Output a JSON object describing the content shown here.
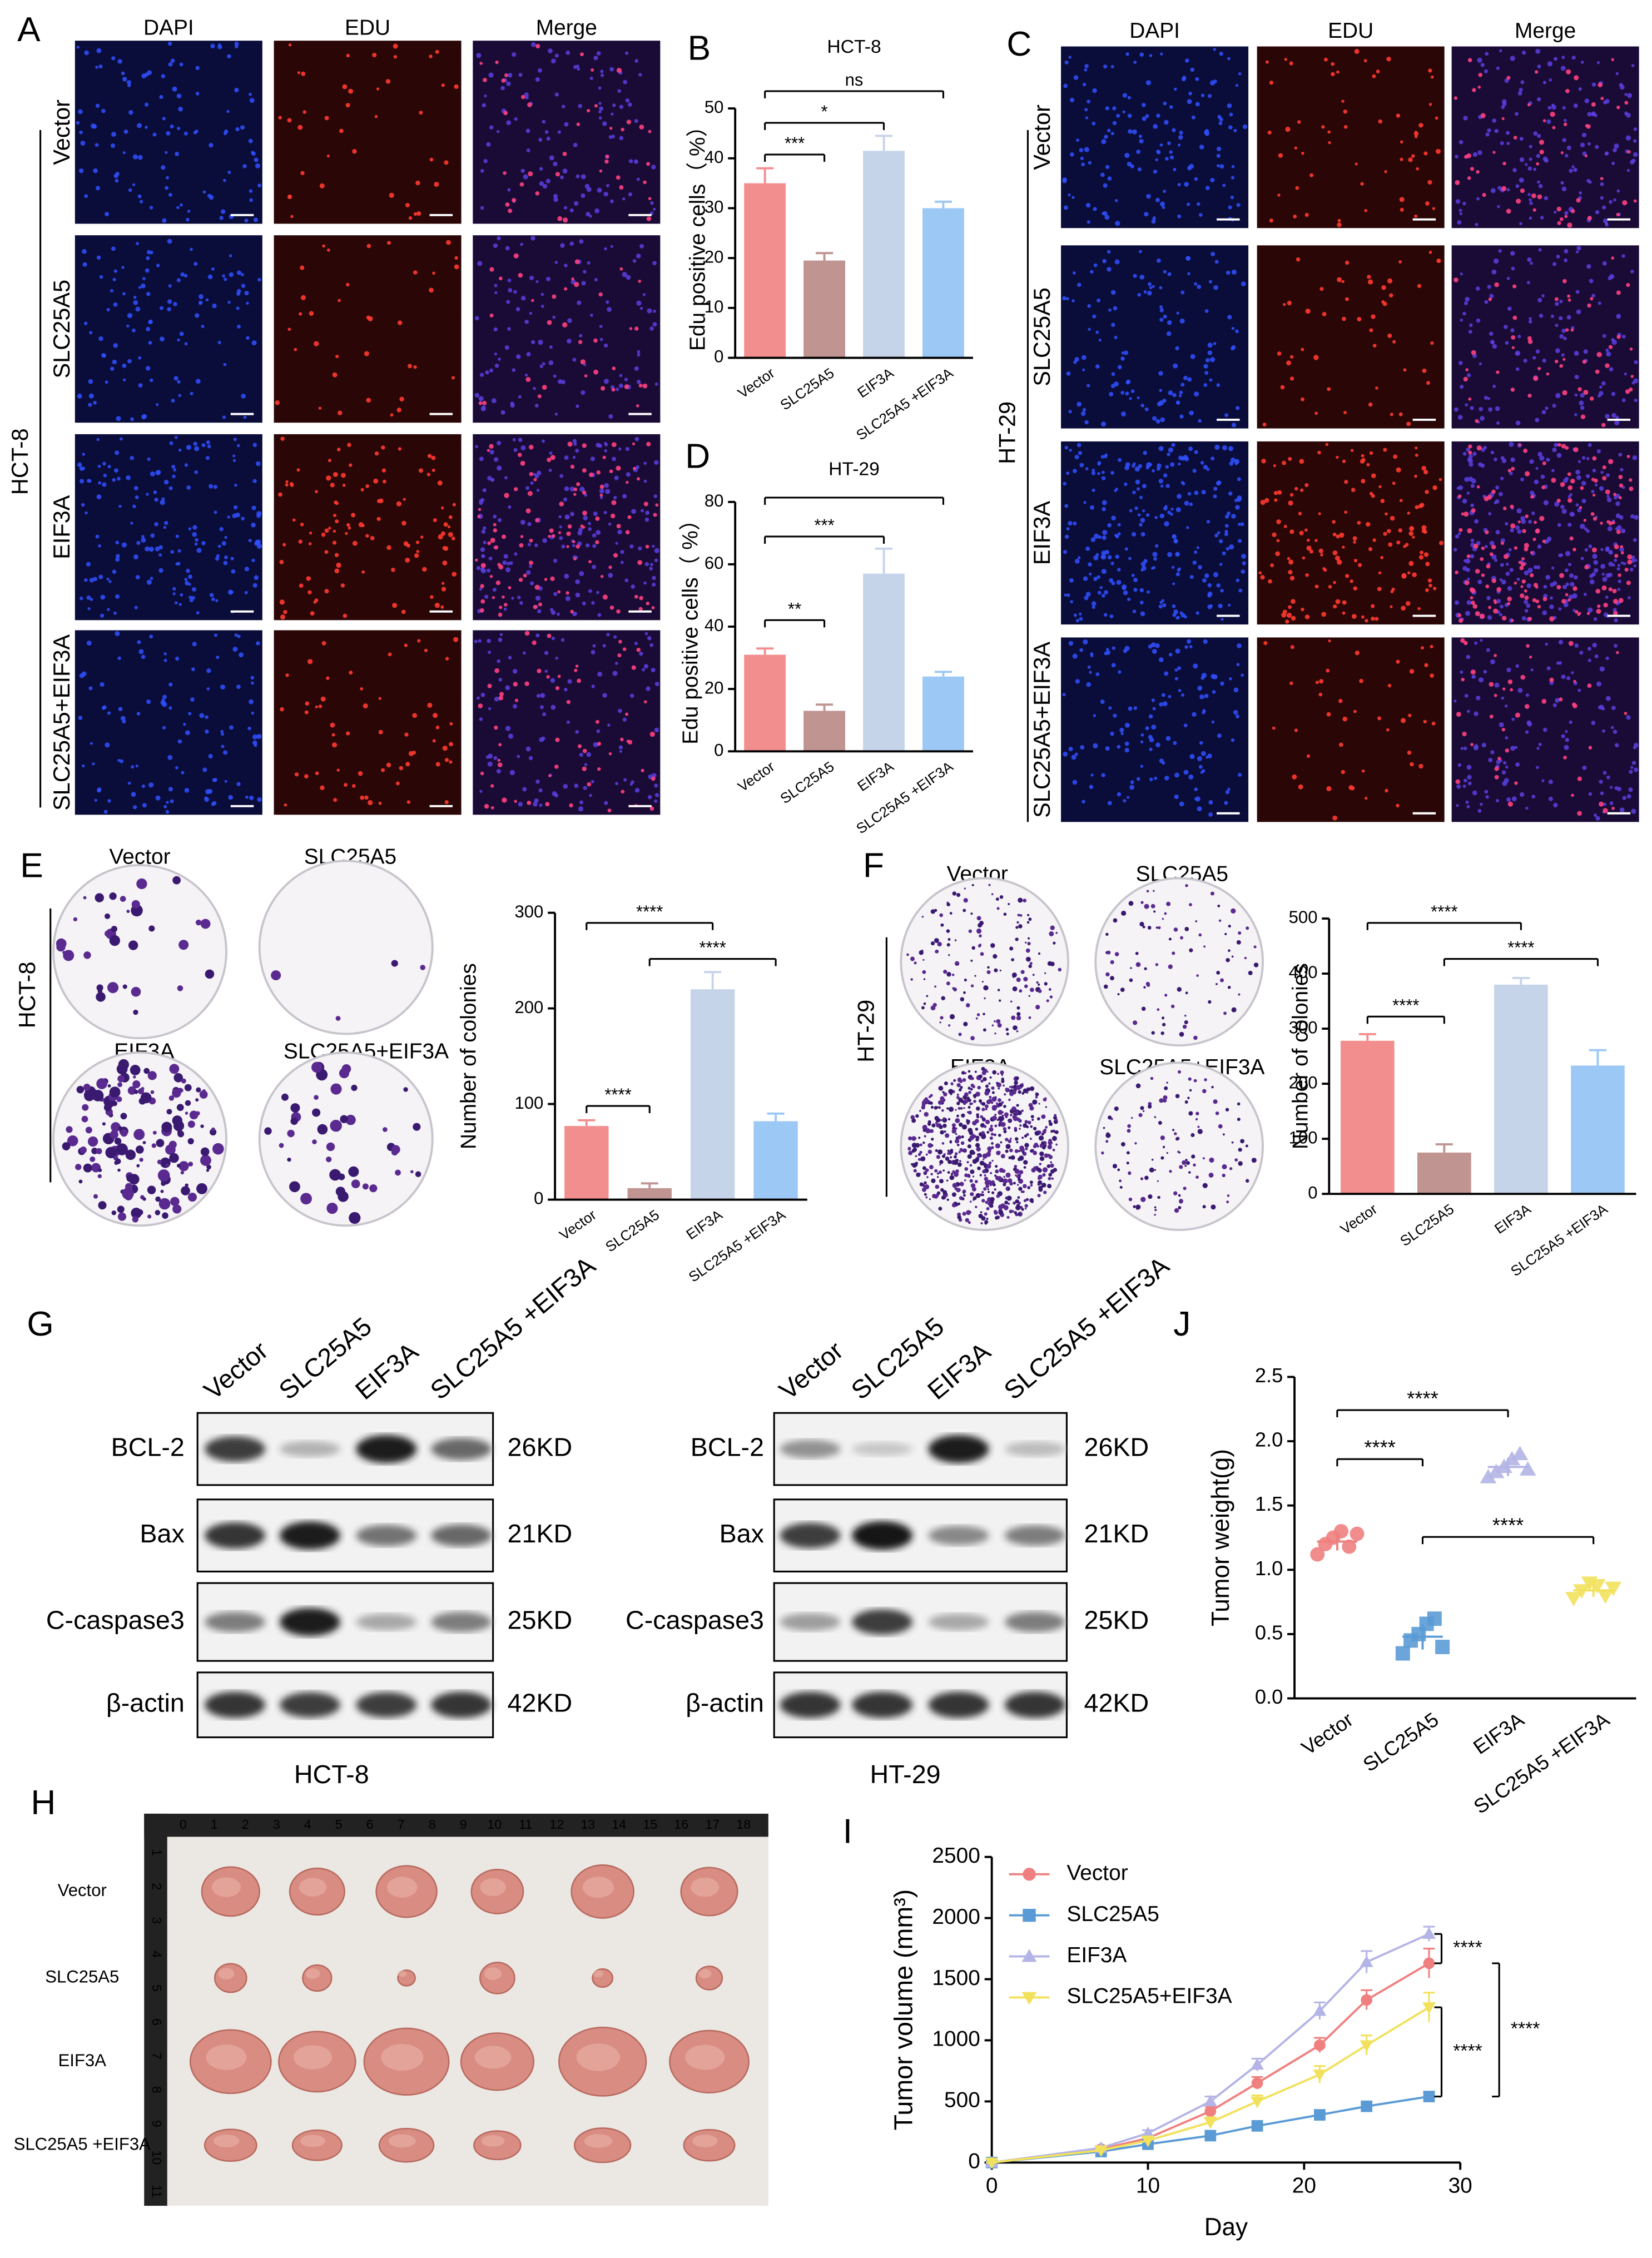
{
  "panel_letters": [
    "A",
    "B",
    "C",
    "D",
    "E",
    "F",
    "G",
    "H",
    "I",
    "J"
  ],
  "fluorescence": [
    {
      "cell_line": "HCT-8",
      "channels": [
        "DAPI",
        "EDU",
        "Merge"
      ],
      "groups": [
        "Vector",
        "SLC25A5",
        "EIF3A",
        "SLC25A5+EIF3A"
      ]
    },
    {
      "cell_line": "HT-29",
      "channels": [
        "DAPI",
        "EDU",
        "Merge"
      ],
      "groups": [
        "Vector",
        "SLC25A5",
        "EIF3A",
        "SLC25A5+EIF3A"
      ]
    }
  ],
  "colony": [
    {
      "cell_line": "HCT-8",
      "groups": [
        "Vector",
        "SLC25A5",
        "EIF3A",
        "SLC25A5+EIF3A"
      ]
    },
    {
      "cell_line": "HT-29",
      "groups": [
        "Vector",
        "SLC25A5",
        "EIF3A",
        "SLC25A5+EIF3A"
      ]
    }
  ],
  "western": {
    "lanes": [
      "Vector",
      "SLC25A5",
      "EIF3A",
      "SLC25A5 +EIF3A"
    ],
    "blots": [
      {
        "cell_line": "HCT-8",
        "proteins": [
          "BCL-2",
          "Bax",
          "C-caspase3",
          "β-actin"
        ],
        "sizes": [
          "26KD",
          "21KD",
          "25KD",
          "42KD"
        ]
      },
      {
        "cell_line": "HT-29",
        "proteins": [
          "BCL-2",
          "Bax",
          "C-caspase3",
          "β-actin"
        ],
        "sizes": [
          "26KD",
          "21KD",
          "25KD",
          "42KD"
        ]
      }
    ]
  },
  "tumor_photo": {
    "groups": [
      "Vector",
      "SLC25A5",
      "EIF3A",
      "SLC25A5 +EIF3A"
    ],
    "ruler_top": [
      0,
      1,
      2,
      3,
      4,
      5,
      6,
      7,
      8,
      9,
      10,
      11,
      12,
      13,
      14,
      15,
      16,
      17,
      18
    ],
    "ruler_side": [
      1,
      2,
      3,
      4,
      5,
      6,
      7,
      8,
      9,
      10,
      11
    ]
  },
  "chart_data": [
    {
      "type": "bar",
      "title": "HCT-8",
      "y_label": "Edu positive cells（ %）",
      "categories": [
        "Vector",
        "SLC25A5",
        "EIF3A",
        "SLC25A5 +EIF3A"
      ],
      "values": [
        35,
        19.5,
        41.5,
        30
      ],
      "errors": [
        3,
        1.5,
        3,
        1.3
      ],
      "colors": [
        "#f28e8e",
        "#bf9491",
        "#c6d4ea",
        "#9cc8f5"
      ],
      "ylim": [
        0,
        50
      ],
      "yticks": [
        0,
        10,
        20,
        30,
        40,
        50
      ],
      "comparisons": [
        {
          "from": 0,
          "to": 1,
          "label": "***"
        },
        {
          "from": 0,
          "to": 2,
          "label": "*"
        },
        {
          "from": 0,
          "to": 3,
          "label": "ns"
        }
      ]
    },
    {
      "type": "bar",
      "title": "HT-29",
      "y_label": "Edu positive cells（ %）",
      "categories": [
        "Vector",
        "SLC25A5",
        "EIF3A",
        "SLC25A5 +EIF3A"
      ],
      "values": [
        31,
        13,
        57,
        24
      ],
      "errors": [
        2,
        2,
        8,
        1.5
      ],
      "colors": [
        "#f28e8e",
        "#bf9491",
        "#c6d4ea",
        "#9cc8f5"
      ],
      "ylim": [
        0,
        80
      ],
      "yticks": [
        0,
        20,
        40,
        60,
        80
      ],
      "comparisons": [
        {
          "from": 0,
          "to": 1,
          "label": "**"
        },
        {
          "from": 0,
          "to": 2,
          "label": "***"
        },
        {
          "from": 0,
          "to": 3
        }
      ]
    },
    {
      "type": "bar",
      "y_label": "Number of colonies",
      "categories": [
        "Vector",
        "SLC25A5",
        "EIF3A",
        "SLC25A5 +EIF3A"
      ],
      "values": [
        77,
        12,
        220,
        82
      ],
      "errors": [
        6,
        5,
        18,
        8
      ],
      "colors": [
        "#f28e8e",
        "#bf9491",
        "#c6d4ea",
        "#9cc8f5"
      ],
      "ylim": [
        0,
        300
      ],
      "yticks": [
        0,
        100,
        200,
        300
      ],
      "comparisons": [
        {
          "from": 0,
          "to": 1,
          "label": "****"
        },
        {
          "from": 0,
          "to": 2,
          "label": "****"
        },
        {
          "from": 1,
          "to": 3,
          "label": "****"
        }
      ]
    },
    {
      "type": "bar",
      "y_label": "Number of colonies",
      "categories": [
        "Vector",
        "SLC25A5",
        "EIF3A",
        "SLC25A5 +EIF3A"
      ],
      "values": [
        278,
        75,
        380,
        233
      ],
      "errors": [
        12,
        15,
        12,
        28
      ],
      "colors": [
        "#f28e8e",
        "#bf9491",
        "#c6d4ea",
        "#9cc8f5"
      ],
      "ylim": [
        0,
        500
      ],
      "yticks": [
        0,
        100,
        200,
        300,
        400,
        500
      ],
      "comparisons": [
        {
          "from": 0,
          "to": 1,
          "label": "****"
        },
        {
          "from": 0,
          "to": 2,
          "label": "****"
        },
        {
          "from": 1,
          "to": 3,
          "label": "****"
        }
      ]
    },
    {
      "type": "strip",
      "y_label": "Tumor weight(g)",
      "series": [
        {
          "name": "Vector",
          "color": "#f08080",
          "marker": "circle",
          "values": [
            1.12,
            1.2,
            1.25,
            1.3,
            1.18,
            1.28
          ],
          "mean": 1.22,
          "sd": 0.07
        },
        {
          "name": "SLC25A5",
          "color": "#5b9bd5",
          "marker": "square",
          "values": [
            0.35,
            0.45,
            0.5,
            0.58,
            0.62,
            0.4
          ],
          "mean": 0.48,
          "sd": 0.1
        },
        {
          "name": "EIF3A",
          "color": "#b4b4e6",
          "marker": "triangle",
          "values": [
            1.72,
            1.76,
            1.8,
            1.86,
            1.9,
            1.78
          ],
          "mean": 1.8,
          "sd": 0.07
        },
        {
          "name": "SLC25A5 +EIF3A",
          "color": "#f2e15c",
          "marker": "triangle-down",
          "values": [
            0.78,
            0.84,
            0.9,
            0.88,
            0.8,
            0.86
          ],
          "mean": 0.84,
          "sd": 0.05
        }
      ],
      "ylim": [
        0,
        2.5
      ],
      "yticks": [
        {
          "value": 0,
          "label": "0.0"
        },
        0.5,
        {
          "value": 1,
          "label": "1.0"
        },
        1.5,
        {
          "value": 2,
          "label": "2.0"
        },
        2.5
      ],
      "comparisons": [
        {
          "from": 0,
          "to": 1,
          "label": "****"
        },
        {
          "from": 0,
          "to": 2,
          "label": "****"
        },
        {
          "from": 1,
          "to": 3,
          "label": "****"
        }
      ]
    },
    {
      "type": "line",
      "x_label": "Day",
      "y_label": "Tumor volume (mm³)",
      "x": [
        0,
        7,
        10,
        14,
        17,
        21,
        24,
        28
      ],
      "series": [
        {
          "name": "Vector",
          "color": "#f08080",
          "marker": "circle",
          "values": [
            0,
            110,
            200,
            420,
            650,
            960,
            1330,
            1630
          ],
          "errors": [
            0,
            15,
            20,
            40,
            50,
            60,
            80,
            120
          ]
        },
        {
          "name": "SLC25A5",
          "color": "#5b9bd5",
          "marker": "square",
          "values": [
            0,
            90,
            150,
            220,
            300,
            390,
            460,
            540
          ],
          "errors": [
            0,
            10,
            15,
            20,
            25,
            25,
            30,
            35
          ]
        },
        {
          "name": "EIF3A",
          "color": "#b4b4e6",
          "marker": "triangle",
          "values": [
            0,
            120,
            240,
            500,
            800,
            1240,
            1640,
            1870
          ],
          "errors": [
            0,
            15,
            25,
            40,
            50,
            70,
            90,
            60
          ]
        },
        {
          "name": "SLC25A5+EIF3A",
          "color": "#f2e15c",
          "marker": "triangle-down",
          "values": [
            0,
            100,
            180,
            330,
            500,
            720,
            960,
            1270
          ],
          "errors": [
            0,
            10,
            20,
            40,
            50,
            70,
            80,
            120
          ]
        }
      ],
      "xlim": [
        0,
        30
      ],
      "xticks": [
        0,
        10,
        20,
        30
      ],
      "ylim": [
        0,
        2500
      ],
      "yticks": [
        0,
        500,
        1000,
        1500,
        2000,
        2500
      ],
      "comparisons": [
        {
          "from": 2,
          "to": 0,
          "label": "****"
        },
        {
          "from": 3,
          "to": 1,
          "label": "****"
        },
        {
          "from": 0,
          "to": 1,
          "label": "****"
        }
      ]
    }
  ]
}
